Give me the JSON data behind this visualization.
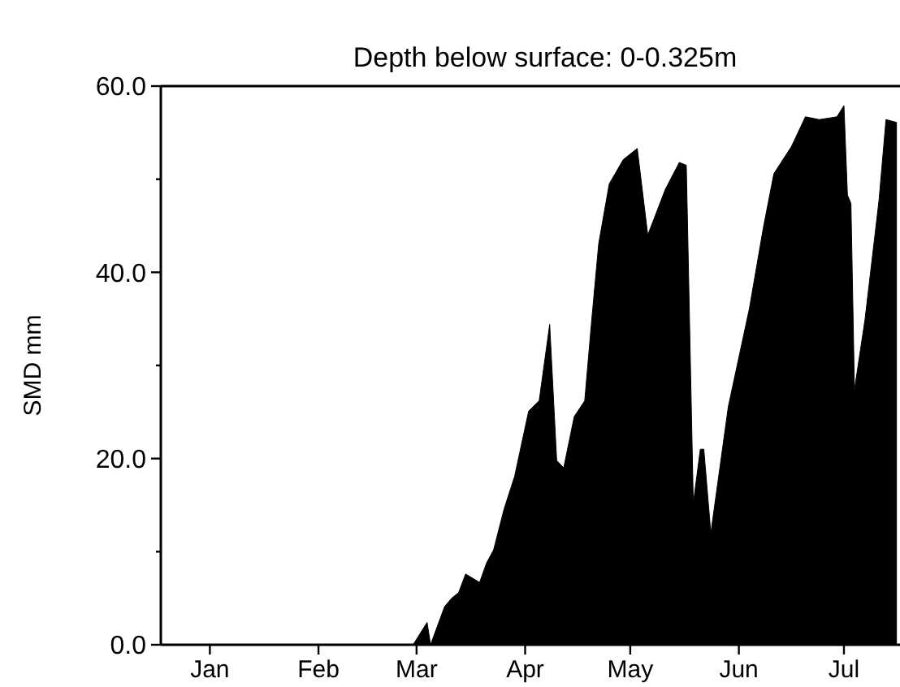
{
  "chart_data": {
    "type": "area",
    "title": "Depth below surface: 0-0.325m",
    "ylabel": "SMD mm",
    "x": [
      "--01-01",
      "--03-14",
      "--03-18",
      "--03-19",
      "--03-23",
      "--03-25",
      "--03-27",
      "--03-29",
      "--04-02",
      "--04-04",
      "--04-06",
      "--04-09",
      "--04-12",
      "--04-16",
      "--04-19",
      "--04-22",
      "--04-24",
      "--04-26",
      "--04-29",
      "--05-02",
      "--05-04",
      "--05-06",
      "--05-09",
      "--05-13",
      "--05-17",
      "--05-20",
      "--05-25",
      "--05-29",
      "--05-31",
      "--06-02",
      "--06-04",
      "--06-05",
      "--06-07",
      "--06-12",
      "--06-18",
      "--06-22",
      "--06-25",
      "--06-30",
      "--07-04",
      "--07-08",
      "--07-13",
      "--07-15",
      "--07-16",
      "--07-17",
      "--07-18",
      "--07-21",
      "--07-25",
      "--07-27",
      "--07-30"
    ],
    "series": [
      {
        "color": "#000000",
        "values": [
          0,
          0,
          2.4,
          0,
          4.1,
          5.0,
          5.6,
          7.6,
          6.7,
          8.8,
          10.2,
          14.6,
          18.1,
          25.1,
          26.2,
          34.4,
          19.8,
          19.0,
          24.5,
          26.2,
          34.9,
          43.1,
          49.5,
          52.1,
          53.3,
          44.0,
          48.9,
          51.8,
          51.5,
          15.2,
          21.0,
          21.0,
          12.0,
          25.6,
          36.1,
          44.8,
          50.6,
          53.5,
          56.7,
          56.4,
          56.7,
          57.9,
          48.3,
          47.4,
          27.4,
          34.9,
          47.7,
          56.4,
          56.1
        ]
      }
    ],
    "xlim": [
      "--01-01",
      "--07-31"
    ],
    "xticks": [
      {
        "value": "--01-15",
        "label": "Jan"
      },
      {
        "value": "--02-15",
        "label": "Feb"
      },
      {
        "value": "--03-15",
        "label": "Mar"
      },
      {
        "value": "--04-15",
        "label": "Apr"
      },
      {
        "value": "--05-15",
        "label": "May"
      },
      {
        "value": "--06-15",
        "label": "Jun"
      },
      {
        "value": "--07-15",
        "label": "Jul"
      }
    ],
    "ylim": [
      0,
      60
    ],
    "yticks": [
      {
        "value": 0,
        "label": "0.0"
      },
      {
        "value": 10,
        "label": null
      },
      {
        "value": 20,
        "label": "20.0"
      },
      {
        "value": 30,
        "label": null
      },
      {
        "value": 40,
        "label": "40.0"
      },
      {
        "value": 50,
        "label": null
      },
      {
        "value": 60,
        "label": "60.0"
      }
    ],
    "grid": false
  }
}
